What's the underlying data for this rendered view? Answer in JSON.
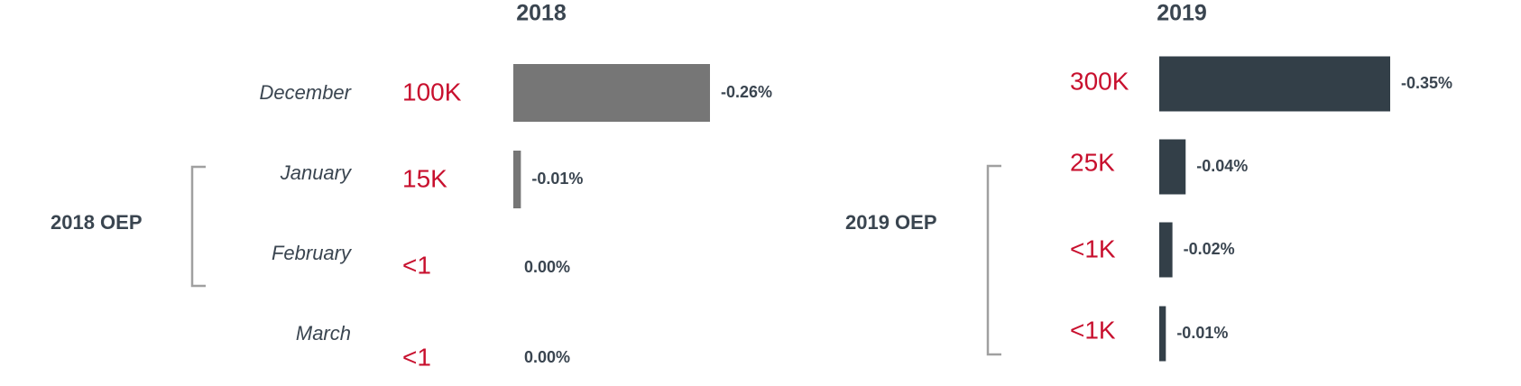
{
  "chart_data": [
    {
      "type": "bar",
      "orientation": "horizontal",
      "title": "2018",
      "group_label": "2018 OEP",
      "categories": [
        "December",
        "January",
        "February",
        "March"
      ],
      "count_labels": [
        "100K",
        "15K",
        "<1",
        "<1"
      ],
      "values": [
        -0.26,
        -0.01,
        0.0,
        0.0
      ],
      "value_labels": [
        "-0.26%",
        "-0.01%",
        "0.00%",
        "0.00%"
      ],
      "color": "#767676"
    },
    {
      "type": "bar",
      "orientation": "horizontal",
      "title": "2019",
      "group_label": "2019 OEP",
      "count_labels": [
        "300K",
        "25K",
        "<1K",
        "<1K"
      ],
      "values": [
        -0.35,
        -0.04,
        -0.02,
        -0.01
      ],
      "value_labels": [
        "-0.35%",
        "-0.04%",
        "-0.02%",
        "-0.01%"
      ],
      "color": "#333f48"
    }
  ]
}
